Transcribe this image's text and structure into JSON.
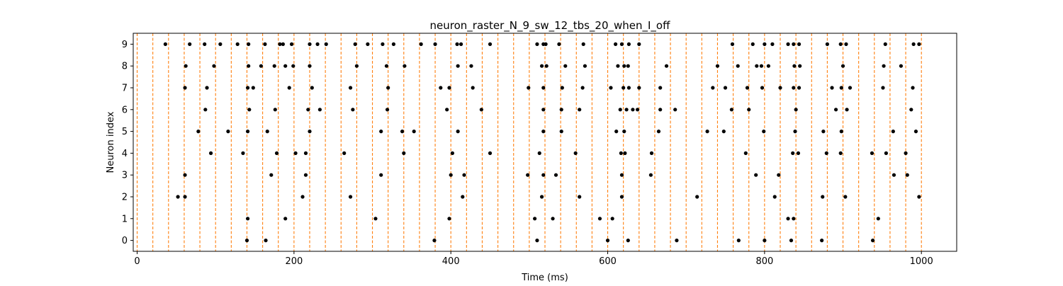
{
  "chart_data": {
    "type": "scatter",
    "title": "neuron_raster_N_9_sw_12_tbs_20_when_I_off",
    "xlabel": "Time (ms)",
    "ylabel": "Neuron index",
    "xlim": [
      -5,
      1045
    ],
    "ylim": [
      -0.5,
      9.5
    ],
    "xticks": [
      0,
      200,
      400,
      600,
      800,
      1000
    ],
    "yticks": [
      0,
      1,
      2,
      3,
      4,
      5,
      6,
      7,
      8,
      9
    ],
    "grid": false,
    "marker_color": "#000000",
    "vline_color": "#ff7f0e",
    "vlines": [
      0,
      20,
      40,
      60,
      80,
      100,
      120,
      140,
      160,
      180,
      200,
      220,
      240,
      260,
      280,
      300,
      320,
      340,
      360,
      380,
      400,
      420,
      440,
      460,
      480,
      500,
      520,
      540,
      560,
      580,
      600,
      620,
      640,
      660,
      680,
      700,
      720,
      740,
      760,
      780,
      800,
      820,
      840,
      860,
      880,
      900,
      920,
      940,
      960,
      980,
      1000
    ],
    "spikes": [
      {
        "neuron": 9,
        "times": [
          36,
          67,
          86,
          106,
          128,
          142,
          163,
          182,
          186,
          197,
          220,
          230,
          241,
          278,
          294,
          313,
          327,
          362,
          380,
          408,
          413,
          450,
          510,
          518,
          521,
          538,
          569,
          610,
          618,
          627,
          640,
          759,
          785,
          800,
          810,
          830,
          837,
          844,
          880,
          897,
          904,
          954,
          990,
          997
        ]
      },
      {
        "neuron": 8,
        "times": [
          62,
          98,
          142,
          158,
          175,
          189,
          199,
          220,
          280,
          318,
          341,
          409,
          426,
          516,
          522,
          546,
          571,
          613,
          621,
          626,
          675,
          740,
          766,
          790,
          796,
          805,
          838,
          845,
          900,
          952,
          974
        ]
      },
      {
        "neuron": 7,
        "times": [
          61,
          89,
          141,
          148,
          194,
          223,
          272,
          320,
          387,
          398,
          428,
          499,
          518,
          542,
          568,
          604,
          620,
          627,
          640,
          667,
          734,
          750,
          778,
          797,
          820,
          837,
          844,
          886,
          898,
          909,
          951,
          989
        ]
      },
      {
        "neuron": 6,
        "times": [
          87,
          143,
          176,
          218,
          233,
          275,
          319,
          395,
          439,
          518,
          541,
          564,
          616,
          624,
          632,
          638,
          667,
          686,
          758,
          780,
          840,
          891,
          905,
          987
        ]
      },
      {
        "neuron": 5,
        "times": [
          78,
          116,
          141,
          166,
          220,
          311,
          338,
          353,
          409,
          518,
          541,
          611,
          621,
          665,
          727,
          748,
          799,
          839,
          875,
          898,
          964,
          993
        ]
      },
      {
        "neuron": 4,
        "times": [
          94,
          135,
          178,
          202,
          215,
          264,
          340,
          402,
          450,
          513,
          559,
          617,
          622,
          656,
          776,
          836,
          843,
          879,
          897,
          937,
          955,
          980
        ]
      },
      {
        "neuron": 3,
        "times": [
          61,
          171,
          215,
          311,
          400,
          417,
          498,
          518,
          534,
          618,
          655,
          789,
          818,
          965,
          982
        ]
      },
      {
        "neuron": 2,
        "times": [
          52,
          61,
          211,
          272,
          415,
          516,
          564,
          618,
          714,
          813,
          874,
          903,
          997
        ]
      },
      {
        "neuron": 1,
        "times": [
          141,
          189,
          304,
          398,
          507,
          530,
          590,
          606,
          830,
          837,
          945
        ]
      },
      {
        "neuron": 0,
        "times": [
          140,
          164,
          379,
          510,
          600,
          626,
          688,
          767,
          800,
          834,
          873,
          938
        ]
      }
    ]
  }
}
